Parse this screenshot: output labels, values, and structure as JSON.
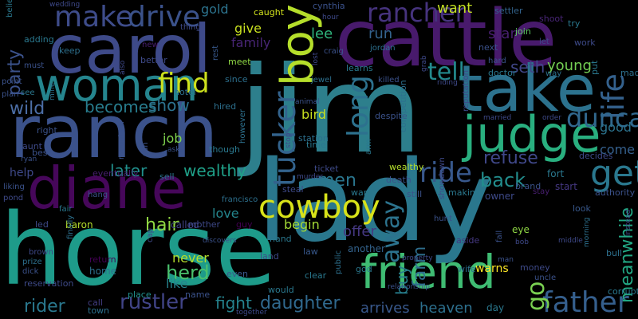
{
  "words": [
    {
      "text": "jim",
      "color": "#2d7f8c"
    },
    {
      "text": "lady",
      "color": "#2a778d"
    },
    {
      "text": "horse",
      "color": "#1e9b8a"
    },
    {
      "text": "cattle",
      "color": "#481a6c"
    },
    {
      "text": "ranch",
      "color": "#3b528b"
    },
    {
      "text": "carol",
      "color": "#3e4a89"
    },
    {
      "text": "take",
      "color": "#2c728e"
    },
    {
      "text": "woman",
      "color": "#25858e"
    },
    {
      "text": "judge",
      "color": "#29af7f"
    },
    {
      "text": "diane",
      "color": "#46075a"
    },
    {
      "text": "friend",
      "color": "#3fbc73"
    },
    {
      "text": "boy",
      "color": "#b5de2b"
    },
    {
      "text": "cowboy",
      "color": "#d8e219"
    },
    {
      "text": "get",
      "color": "#2a788e"
    },
    {
      "text": "father",
      "color": "#355f8d"
    },
    {
      "text": "rustler",
      "color": "#414487"
    },
    {
      "text": "make",
      "color": "#3e4c8a"
    },
    {
      "text": "drive",
      "color": "#3b528b"
    },
    {
      "text": "find",
      "color": "#cde11d"
    },
    {
      "text": "tucker",
      "color": "#33638d"
    },
    {
      "text": "long",
      "color": "#2d718e"
    },
    {
      "text": "ride",
      "color": "#38588c"
    },
    {
      "text": "away",
      "color": "#2c738e"
    },
    {
      "text": "go",
      "color": "#7ad151"
    },
    {
      "text": "life",
      "color": "#34618d"
    },
    {
      "text": "meanwhile",
      "color": "#22a884"
    },
    {
      "text": "rancher",
      "color": "#46337e"
    },
    {
      "text": "duncan",
      "color": "#31688e"
    },
    {
      "text": "tell",
      "color": "#238a8d"
    },
    {
      "text": "party",
      "color": "#3b528b"
    },
    {
      "text": "wild",
      "color": "#4c6ea6"
    },
    {
      "text": "becomes",
      "color": "#287d8e"
    },
    {
      "text": "show",
      "color": "#2c728e"
    },
    {
      "text": "herd",
      "color": "#4ac16d"
    },
    {
      "text": "later",
      "color": "#21908d"
    },
    {
      "text": "wealthy",
      "color": "#1fa088"
    },
    {
      "text": "men",
      "color": "#2a768e"
    },
    {
      "text": "refuse",
      "color": "#3f4788"
    },
    {
      "text": "back",
      "color": "#228d8d"
    },
    {
      "text": "hair",
      "color": "#90d743"
    },
    {
      "text": "daughter",
      "color": "#30698e"
    },
    {
      "text": "fight",
      "color": "#25838e"
    },
    {
      "text": "rider",
      "color": "#2a788e"
    },
    {
      "text": "heaven",
      "color": "#2d708e"
    },
    {
      "text": "arrives",
      "color": "#38588c"
    },
    {
      "text": "named",
      "color": "#277f8e"
    },
    {
      "text": "buy",
      "color": "#453882"
    },
    {
      "text": "offer",
      "color": "#2e6e8e"
    },
    {
      "text": "young",
      "color": "#75d054"
    },
    {
      "text": "farm",
      "color": "#404688"
    },
    {
      "text": "seth",
      "color": "#481f70"
    },
    {
      "text": "star",
      "color": "#33638d"
    },
    {
      "text": "run",
      "color": "#2fb47c"
    },
    {
      "text": "lee",
      "color": "#c2df23"
    },
    {
      "text": "want",
      "color": "#35608d"
    },
    {
      "text": "come",
      "color": "#2c738e"
    },
    {
      "text": "good",
      "color": "#b4de2c"
    },
    {
      "text": "never",
      "color": "#26828e"
    },
    {
      "text": "like",
      "color": "#a5db36"
    },
    {
      "text": "begin",
      "color": "#24868e"
    },
    {
      "text": "love",
      "color": "#7fd34e"
    },
    {
      "text": "job",
      "color": "#c8e020"
    },
    {
      "text": "bird",
      "color": "#c8e020"
    },
    {
      "text": "give",
      "color": "#482576"
    },
    {
      "text": "family",
      "color": "#2c738e"
    },
    {
      "text": "gold",
      "color": "#d0e11c"
    },
    {
      "text": "caught",
      "color": "#3b528b"
    },
    {
      "text": "cynthia",
      "color": "#33638d"
    },
    {
      "text": "settler",
      "color": "#482576"
    },
    {
      "text": "shoot",
      "color": "#5ec962"
    },
    {
      "text": "join",
      "color": "#3b528b"
    },
    {
      "text": "next",
      "color": "#2a788e"
    },
    {
      "text": "try",
      "color": "#3e4a89"
    },
    {
      "text": "work",
      "color": "#3e4989"
    },
    {
      "text": "help",
      "color": "#3e4a89"
    },
    {
      "text": "aunt",
      "color": "#481f70"
    },
    {
      "text": "eventually",
      "color": "#b5de2b"
    },
    {
      "text": "baron",
      "color": "#414487"
    },
    {
      "text": "called",
      "color": "#3e4989"
    },
    {
      "text": "mother",
      "color": "#440154"
    },
    {
      "text": "guy",
      "color": "#2a788e"
    },
    {
      "text": "hand",
      "color": "#3e4a89"
    },
    {
      "text": "land",
      "color": "#21908d"
    },
    {
      "text": "place",
      "color": "#2d708e"
    },
    {
      "text": "home",
      "color": "#440154"
    },
    {
      "text": "return",
      "color": "#433e85"
    },
    {
      "text": "call",
      "color": "#2d708e"
    },
    {
      "text": "town",
      "color": "#3b528b"
    },
    {
      "text": "name",
      "color": "#38588c"
    },
    {
      "text": "even",
      "color": "#2a788e"
    },
    {
      "text": "would",
      "color": "#2a788e"
    },
    {
      "text": "clear",
      "color": "#38588c"
    },
    {
      "text": "law",
      "color": "#33638d"
    },
    {
      "text": "another",
      "color": "#2a788e"
    },
    {
      "text": "god",
      "color": "#453882"
    },
    {
      "text": "aside",
      "color": "#2d708e"
    },
    {
      "text": "wife",
      "color": "#fde725"
    },
    {
      "text": "warns",
      "color": "#2a788e"
    },
    {
      "text": "day",
      "color": "#8fd744"
    },
    {
      "text": "eye",
      "color": "#38588c"
    },
    {
      "text": "look",
      "color": "#453882"
    },
    {
      "text": "start",
      "color": "#2a788e"
    },
    {
      "text": "fort",
      "color": "#3e4a89"
    },
    {
      "text": "decides",
      "color": "#3b528b"
    },
    {
      "text": "authority",
      "color": "#2d708e"
    },
    {
      "text": "bull",
      "color": "#2a788e"
    },
    {
      "text": "corrupt",
      "color": "#3e4a89"
    },
    {
      "text": "money",
      "color": "#3b528b"
    },
    {
      "text": "uncle",
      "color": "#3e4a89"
    },
    {
      "text": "owner",
      "color": "#3b528b"
    },
    {
      "text": "brand",
      "color": "#481f70"
    },
    {
      "text": "stay",
      "color": "#3e4a89"
    },
    {
      "text": "steal",
      "color": "#2a788e"
    },
    {
      "text": "war",
      "color": "#3b528b"
    },
    {
      "text": "still",
      "color": "#2a788e"
    },
    {
      "text": "making",
      "color": "#3b528b"
    },
    {
      "text": "death",
      "color": "#3e4a89"
    },
    {
      "text": "ticket",
      "color": "#b4de2c"
    },
    {
      "text": "wealthy",
      "color": "#1fa088"
    },
    {
      "text": "along",
      "color": "#2a788e"
    },
    {
      "text": "time",
      "color": "#2d708e"
    },
    {
      "text": "station",
      "color": "#3b528b"
    },
    {
      "text": "mountain",
      "color": "#3b528b"
    },
    {
      "text": "san",
      "color": "#2a788e"
    },
    {
      "text": "though",
      "color": "#2d708e"
    },
    {
      "text": "however",
      "color": "#3b528b"
    },
    {
      "text": "asks",
      "color": "#2a788e"
    },
    {
      "text": "sell",
      "color": "#2d708e"
    },
    {
      "text": "hired",
      "color": "#2d708e"
    },
    {
      "text": "since",
      "color": "#8fd744"
    },
    {
      "text": "meet",
      "color": "#38588c"
    },
    {
      "text": "rest",
      "color": "#3e4a89"
    },
    {
      "text": "better",
      "color": "#3e4989"
    },
    {
      "text": "thing",
      "color": "#481f70"
    },
    {
      "text": "new",
      "color": "#2d708e"
    },
    {
      "text": "keep",
      "color": "#2a788e"
    },
    {
      "text": "adding",
      "color": "#3b528b"
    },
    {
      "text": "must",
      "color": "#3b528b"
    },
    {
      "text": "point",
      "color": "#3b528b"
    },
    {
      "text": "plan",
      "color": "#2a788e"
    },
    {
      "text": "see",
      "color": "#2a788e"
    },
    {
      "text": "believe",
      "color": "#3e4989"
    },
    {
      "text": "wedding",
      "color": "#3e4989"
    },
    {
      "text": "also",
      "color": "#2d708e"
    },
    {
      "text": "hotel",
      "color": "#2d708e"
    },
    {
      "text": "mine",
      "color": "#3b528b"
    },
    {
      "text": "right",
      "color": "#3b528b"
    },
    {
      "text": "best",
      "color": "#3b528b"
    },
    {
      "text": "ryan",
      "color": "#3b528b"
    },
    {
      "text": "liking",
      "color": "#3e4989"
    },
    {
      "text": "pond",
      "color": "#2a788e"
    },
    {
      "text": "fair",
      "color": "#3b528b"
    },
    {
      "text": "hang",
      "color": "#3e4a89"
    },
    {
      "text": "led",
      "color": "#3e4989"
    },
    {
      "text": "brown",
      "color": "#2d708e"
    },
    {
      "text": "prize",
      "color": "#3b528b"
    },
    {
      "text": "dick",
      "color": "#3e4a89"
    },
    {
      "text": "reservation",
      "color": "#2d708e"
    },
    {
      "text": "finally",
      "color": "#3e4989"
    },
    {
      "text": "cap",
      "color": "#3b528b"
    },
    {
      "text": "discovers",
      "color": "#2d708e"
    },
    {
      "text": "francisco",
      "color": "#3e4989"
    },
    {
      "text": "together",
      "color": "#2d708e"
    },
    {
      "text": "public",
      "color": "#3b528b"
    },
    {
      "text": "relationship",
      "color": "#2a788e"
    },
    {
      "text": "arm",
      "color": "#3b528b"
    },
    {
      "text": "despite",
      "color": "#2d708e"
    },
    {
      "text": "competition",
      "color": "#3e4989"
    },
    {
      "text": "showdown",
      "color": "#3b528b"
    },
    {
      "text": "hunt",
      "color": "#3e4989"
    },
    {
      "text": "property",
      "color": "#3b528b"
    },
    {
      "text": "fall",
      "color": "#3e4a89"
    },
    {
      "text": "reputation",
      "color": "#3e4989"
    },
    {
      "text": "married",
      "color": "#3e4989"
    },
    {
      "text": "order",
      "color": "#3b528b"
    },
    {
      "text": "man",
      "color": "#3e4989"
    },
    {
      "text": "bob",
      "color": "#3e4989"
    },
    {
      "text": "middle",
      "color": "#2d708e"
    },
    {
      "text": "morning",
      "color": "#3e4989"
    },
    {
      "text": "instead",
      "color": "#2a788e"
    },
    {
      "text": "doctor",
      "color": "#2d708e"
    },
    {
      "text": "way",
      "color": "#2a788e"
    },
    {
      "text": "put",
      "color": "#2d708e"
    },
    {
      "text": "made",
      "color": "#3b528b"
    },
    {
      "text": "killed",
      "color": "#2d708e"
    },
    {
      "text": "jewel",
      "color": "#2a788e"
    },
    {
      "text": "learns",
      "color": "#3b528b"
    },
    {
      "text": "craig",
      "color": "#2d708e"
    },
    {
      "text": "jordan",
      "color": "#3e4989"
    },
    {
      "text": "grab",
      "color": "#3e4989"
    },
    {
      "text": "lost",
      "color": "#3b528b"
    },
    {
      "text": "animal",
      "color": "#3e4989"
    },
    {
      "text": "stop",
      "color": "#3e4a89"
    },
    {
      "text": "murder",
      "color": "#3e4989"
    },
    {
      "text": "riding",
      "color": "#3e4989"
    },
    {
      "text": "hour",
      "color": "#3e4989"
    },
    {
      "text": "let",
      "color": "#3b528b"
    },
    {
      "text": "hard",
      "color": "#3e4989"
    }
  ]
}
